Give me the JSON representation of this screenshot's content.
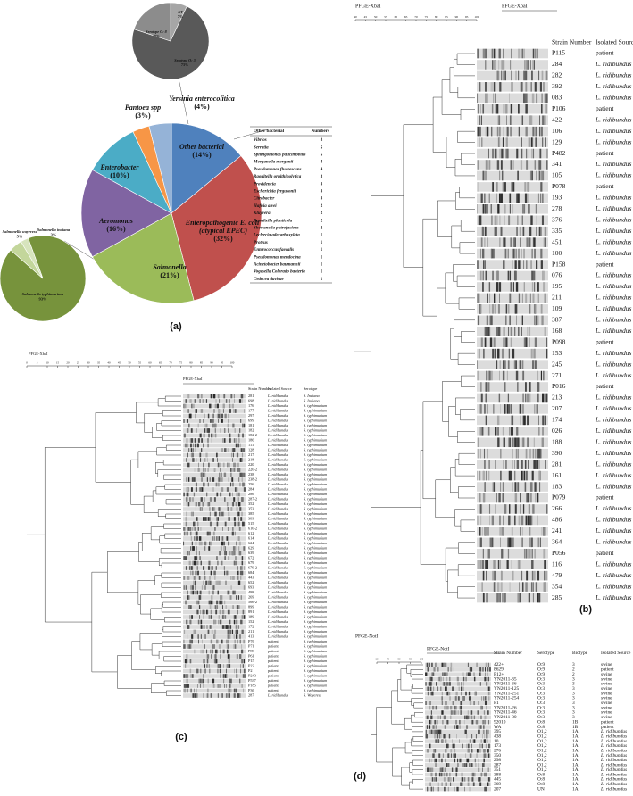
{
  "panel_a": {
    "label": "(a)",
    "main_pie": {
      "names": [
        "Other bacterial",
        "Enteropathogenic E. coli (atypical EPEC)",
        "Salmonella",
        "Aeromonas",
        "Enterobacter",
        "Pantoea spp",
        "Yersinia enterocolitica"
      ],
      "values": [
        14,
        32,
        21,
        16,
        10,
        3,
        4
      ],
      "value_labels": [
        "(14%)",
        "(32%)",
        "(21%)",
        "(16%)",
        "(10%)",
        "(3%)",
        "(4%)"
      ],
      "colors": [
        "#4f81bd",
        "#c0504d",
        "#9bbb59",
        "#8064a2",
        "#4bacc6",
        "#f79646",
        "#95b3d7"
      ]
    },
    "yersinia_pie": {
      "names": [
        "NT",
        "Serotype O: 3",
        "Serotype O: 8"
      ],
      "values": [
        7,
        73,
        20
      ],
      "value_labels": [
        "7%",
        "73%",
        "20%"
      ],
      "colors": [
        "#a6a6a6",
        "#595959",
        "#8c8c8c"
      ]
    },
    "salmonella_pie": {
      "names": [
        "Salmonella typhimurium",
        "Salmonella wayeress",
        "Salmonella indiana"
      ],
      "values": [
        93,
        5,
        3
      ],
      "value_labels": [
        "93%",
        "5%",
        "3%"
      ],
      "colors": [
        "#77933c",
        "#c3d69b",
        "#d7e4bd"
      ]
    },
    "table": {
      "header": [
        "Other bacterial",
        "Numbers"
      ],
      "rows": [
        [
          "Vibrios",
          8
        ],
        [
          "Serratia",
          5
        ],
        [
          "Sphingomonas paucimobilis",
          5
        ],
        [
          "Morganella morganii",
          4
        ],
        [
          "Pseudomonas fluorescens",
          4
        ],
        [
          "Raoultella ornithinolytica",
          3
        ],
        [
          "Providencia",
          3
        ],
        [
          "Escherichia fergusonii",
          3
        ],
        [
          "Citrobacter",
          3
        ],
        [
          "Hafnia alvei",
          2
        ],
        [
          "Kluyvera",
          2
        ],
        [
          "Raoultella planticola",
          2
        ],
        [
          "Shewanella putrefaciens",
          2
        ],
        [
          "Leclercia adecarboxylata",
          1
        ],
        [
          "Proteus",
          1
        ],
        [
          "Enterococcus faecalis",
          1
        ],
        [
          "Pseudomonas mendocina",
          1
        ],
        [
          "Acinetobacter baumannii",
          1
        ],
        [
          "Vogesella Colorado bacteria",
          1
        ],
        [
          "Cedecea davisae",
          1
        ]
      ]
    }
  },
  "panel_b": {
    "label": "(b)",
    "dendrogram_title": "PFGE-XbaI",
    "gel_title": "PFGE-XbaI",
    "scale_ticks": [
      40,
      45,
      50,
      55,
      60,
      65,
      70,
      75,
      80,
      85,
      90,
      95,
      100
    ],
    "header": [
      "Strain Number",
      "Isolated Source"
    ],
    "rows": [
      [
        "P115",
        "patient"
      ],
      [
        "284",
        "L. ridibundus"
      ],
      [
        "282",
        "L. ridibundus"
      ],
      [
        "392",
        "L. ridibundus"
      ],
      [
        "083",
        "L. ridibundus"
      ],
      [
        "P106",
        "patient"
      ],
      [
        "422",
        "L. ridibundus"
      ],
      [
        "106",
        "L. ridibundus"
      ],
      [
        "129",
        "L. ridibundus"
      ],
      [
        "P482",
        "patient"
      ],
      [
        "341",
        "L. ridibundus"
      ],
      [
        "105",
        "L. ridibundus"
      ],
      [
        "P078",
        "patient"
      ],
      [
        "193",
        "L. ridibundus"
      ],
      [
        "278",
        "L. ridibundus"
      ],
      [
        "376",
        "L. ridibundus"
      ],
      [
        "335",
        "L. ridibundus"
      ],
      [
        "451",
        "L. ridibundus"
      ],
      [
        "100",
        "L. ridibundus"
      ],
      [
        "P158",
        "patient"
      ],
      [
        "076",
        "L. ridibundus"
      ],
      [
        "195",
        "L. ridibundus"
      ],
      [
        "211",
        "L. ridibundus"
      ],
      [
        "109",
        "L. ridibundus"
      ],
      [
        "387",
        "L. ridibundus"
      ],
      [
        "168",
        "L. ridibundus"
      ],
      [
        "P098",
        "patient"
      ],
      [
        "153",
        "L. ridibundus"
      ],
      [
        "245",
        "L. ridibundus"
      ],
      [
        "271",
        "L. ridibundus"
      ],
      [
        "P016",
        "patient"
      ],
      [
        "213",
        "L. ridibundus"
      ],
      [
        "207",
        "L. ridibundus"
      ],
      [
        "174",
        "L. ridibundus"
      ],
      [
        "026",
        "L. ridibundus"
      ],
      [
        "188",
        "L. ridibundus"
      ],
      [
        "390",
        "L. ridibundus"
      ],
      [
        "281",
        "L. ridibundus"
      ],
      [
        "161",
        "L. ridibundus"
      ],
      [
        "183",
        "L. ridibundus"
      ],
      [
        "P079",
        "patient"
      ],
      [
        "266",
        "L. ridibundus"
      ],
      [
        "486",
        "L. ridibundus"
      ],
      [
        "241",
        "L. ridibundus"
      ],
      [
        "364",
        "L. ridibundus"
      ],
      [
        "P056",
        "patient"
      ],
      [
        "116",
        "L. ridibundus"
      ],
      [
        "479",
        "L. ridibundus"
      ],
      [
        "354",
        "L. ridibundus"
      ],
      [
        "285",
        "L. ridibundus"
      ]
    ]
  },
  "panel_c": {
    "label": "(c)",
    "dendrogram_title": "PFGE-XbaI",
    "gel_title": "PFGE-XbaI",
    "scale_ticks": [
      0,
      5,
      10,
      15,
      20,
      25,
      30,
      35,
      40,
      45,
      50,
      55,
      60,
      65,
      70,
      75,
      80,
      85,
      90,
      95,
      100
    ],
    "header": [
      "Strain Number",
      "Isolated Source",
      "Serotype"
    ],
    "rows": [
      [
        "281",
        "L. ridibundus",
        "S. Indiana"
      ],
      [
        "698",
        "L. ridibundus",
        "S. Indiana"
      ],
      [
        "176",
        "L. ridibundus",
        "S. typhimurium"
      ],
      [
        "177",
        "L. ridibundus",
        "S. typhimurium"
      ],
      [
        "297",
        "L. ridibundus",
        "S. typhimurium"
      ],
      [
        "699",
        "L. ridibundus",
        "S. typhimurium"
      ],
      [
        "181",
        "L. ridibundus",
        "S. typhimurium"
      ],
      [
        "182",
        "L. ridibundus",
        "S. typhimurium"
      ],
      [
        "182-2",
        "L. ridibundus",
        "S. typhimurium"
      ],
      [
        "186",
        "L. ridibundus",
        "S. typhimurium"
      ],
      [
        "111",
        "L. ridibundus",
        "S. typhimurium"
      ],
      [
        "128",
        "L. ridibundus",
        "S. typhimurium"
      ],
      [
        "217",
        "L. ridibundus",
        "S. typhimurium"
      ],
      [
        "218",
        "L. ridibundus",
        "S. typhimurium"
      ],
      [
        "220",
        "L. ridibundus",
        "S. typhimurium"
      ],
      [
        "220-2",
        "L. ridibundus",
        "S. typhimurium"
      ],
      [
        "238",
        "L. ridibundus",
        "S. typhimurium"
      ],
      [
        "238-2",
        "L. ridibundus",
        "S. typhimurium"
      ],
      [
        "256",
        "L. ridibundus",
        "S. typhimurium"
      ],
      [
        "284",
        "L. ridibundus",
        "S. typhimurium"
      ],
      [
        "286",
        "L. ridibundus",
        "S. typhimurium"
      ],
      [
        "287-2",
        "L. ridibundus",
        "S. typhimurium"
      ],
      [
        "352",
        "L. ridibundus",
        "S. typhimurium"
      ],
      [
        "353",
        "L. ridibundus",
        "S. typhimurium"
      ],
      [
        "385",
        "L. ridibundus",
        "S. typhimurium"
      ],
      [
        "389",
        "L. ridibundus",
        "S. typhimurium"
      ],
      [
        "515",
        "L. ridibundus",
        "S. typhimurium"
      ],
      [
        "610-2",
        "L. ridibundus",
        "S. typhimurium"
      ],
      [
        "612",
        "L. ridibundus",
        "S. typhimurium"
      ],
      [
        "614",
        "L. ridibundus",
        "S. typhimurium"
      ],
      [
        "624",
        "L. ridibundus",
        "S. typhimurium"
      ],
      [
        "629",
        "L. ridibundus",
        "S. typhimurium"
      ],
      [
        "639",
        "L. ridibundus",
        "S. typhimurium"
      ],
      [
        "672",
        "L. ridibundus",
        "S. typhimurium"
      ],
      [
        "679",
        "L. ridibundus",
        "S. typhimurium"
      ],
      [
        "679-2",
        "L. ridibundus",
        "S. typhimurium"
      ],
      [
        "684",
        "L. ridibundus",
        "S. typhimurium"
      ],
      [
        "443",
        "L. ridibundus",
        "S. typhimurium"
      ],
      [
        "652",
        "L. ridibundus",
        "S. typhimurium"
      ],
      [
        "693",
        "L. ridibundus",
        "S. typhimurium"
      ],
      [
        "498",
        "L. ridibundus",
        "S. typhimurium"
      ],
      [
        "269",
        "L. ridibundus",
        "S. typhimurium"
      ],
      [
        "566-2",
        "L. ridibundus",
        "S. typhimurium"
      ],
      [
        "899",
        "L. ridibundus",
        "S. typhimurium"
      ],
      [
        "891",
        "L. ridibundus",
        "S. typhimurium"
      ],
      [
        "189",
        "L. ridibundus",
        "S. typhimurium"
      ],
      [
        "152",
        "L. ridibundus",
        "S. typhimurium"
      ],
      [
        "172",
        "L. ridibundus",
        "S. typhimurium"
      ],
      [
        "211",
        "L. ridibundus",
        "S. typhimurium"
      ],
      [
        "413",
        "L. ridibundus",
        "S. typhimurium"
      ],
      [
        "P76",
        "patient",
        "S. typhimurium"
      ],
      [
        "P71",
        "patient",
        "S. typhimurium"
      ],
      [
        "P89",
        "patient",
        "S. typhimurium"
      ],
      [
        "P61",
        "patient",
        "S. typhimurium"
      ],
      [
        "P15",
        "patient",
        "S. typhimurium"
      ],
      [
        "P22",
        "patient",
        "S. typhimurium"
      ],
      [
        "P2",
        "patient",
        "S. typhimurium"
      ],
      [
        "P243",
        "patient",
        "S. typhimurium"
      ],
      [
        "P537",
        "patient",
        "S. typhimurium"
      ],
      [
        "P185",
        "patient",
        "S. typhimurium"
      ],
      [
        "P36",
        "patient",
        "S. typhimurium"
      ],
      [
        "287",
        "L. ridibundus",
        "S. Wayeress"
      ]
    ]
  },
  "panel_d": {
    "label": "(d)",
    "dendrogram_title": "PFGE-NotI",
    "gel_title": "PFGE-NotI",
    "scale_ticks": [
      60,
      70,
      80,
      90,
      100
    ],
    "header": [
      "Strain Number",
      "Serotype",
      "Biotype",
      "Isolated Source"
    ],
    "rows": [
      [
        "422+",
        "O:9",
        "3",
        "swine"
      ],
      [
        "8629",
        "O:9",
        "2",
        "patient"
      ],
      [
        "P12+",
        "O:9",
        "2",
        "swine"
      ],
      [
        "YN2011-35",
        "O:3",
        "3",
        "swine"
      ],
      [
        "YN2011-36",
        "O:3",
        "3",
        "swine"
      ],
      [
        "YN2011-125",
        "O:3",
        "3",
        "swine"
      ],
      [
        "YN2011-251",
        "O:3",
        "3",
        "swine"
      ],
      [
        "YN2011-254",
        "O:3",
        "3",
        "swine"
      ],
      [
        "P1",
        "O:3",
        "3",
        "swine"
      ],
      [
        "YN2011-26",
        "O:3",
        "3",
        "swine"
      ],
      [
        "YN2011-46",
        "O:3",
        "3",
        "swine"
      ],
      [
        "YN2011-80",
        "O:3",
        "3",
        "swine"
      ],
      [
        "92010",
        "O:8",
        "1B",
        "patient"
      ],
      [
        "WA",
        "O:8",
        "1B",
        "patient"
      ],
      [
        "395",
        "O1,2",
        "1A",
        "L. ridibundus"
      ],
      [
        "438",
        "O1,2",
        "1A",
        "L. ridibundus"
      ],
      [
        "10",
        "O1,2",
        "1A",
        "L. ridibundus"
      ],
      [
        "173",
        "O1,2",
        "1A",
        "L. ridibundus"
      ],
      [
        "276",
        "O1,2",
        "1A",
        "L. ridibundus"
      ],
      [
        "350",
        "O1,2",
        "1A",
        "L. ridibundus"
      ],
      [
        "298",
        "O1,2",
        "1A",
        "L. ridibundus"
      ],
      [
        "287",
        "O1,2",
        "1A",
        "L. ridibundus"
      ],
      [
        "351",
        "O1,2",
        "1A",
        "L. ridibundus"
      ],
      [
        "388",
        "O:8",
        "1A",
        "L. ridibundus"
      ],
      [
        "445",
        "O:8",
        "1A",
        "L. ridibundus"
      ],
      [
        "369",
        "O:8",
        "1A",
        "L. ridibundus"
      ],
      [
        "207",
        "UN",
        "1A",
        "L. ridibundus"
      ]
    ]
  }
}
